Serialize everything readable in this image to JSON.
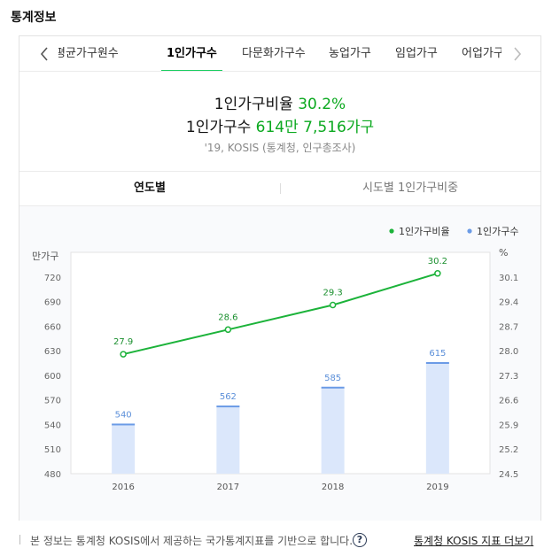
{
  "page_title": "통계정보",
  "tabs": [
    {
      "label": "평균가구원수",
      "active": false
    },
    {
      "label": "1인가구수",
      "active": true
    },
    {
      "label": "다문화가구수",
      "active": false
    },
    {
      "label": "농업가구",
      "active": false
    },
    {
      "label": "임업가구",
      "active": false
    },
    {
      "label": "어업가구",
      "active": false
    }
  ],
  "summary": {
    "line1_label": "1인가구비율",
    "line1_value": "30.2%",
    "line2_label": "1인가구수",
    "line2_value": "614만 7,516가구",
    "source": "'19, KOSIS (통계청, 인구총조사)"
  },
  "subtabs": {
    "active": "연도별",
    "inactive": "시도별 1인가구비중"
  },
  "colors": {
    "line": "#1cb33a",
    "bar_fill": "#dbe7fb",
    "bar_top": "#6b9be6",
    "bar_label": "#5b8fd9",
    "green_text": "#0ba91f"
  },
  "chart_data": {
    "type": "bar+line",
    "categories": [
      "2016",
      "2017",
      "2018",
      "2019"
    ],
    "series": [
      {
        "name": "1인가구수",
        "type": "bar",
        "axis": "left",
        "values": [
          540,
          562,
          585,
          615
        ],
        "labels": [
          "540",
          "562",
          "585",
          "615"
        ]
      },
      {
        "name": "1인가구비율",
        "type": "line",
        "axis": "right",
        "values": [
          27.9,
          28.6,
          29.3,
          30.2
        ],
        "labels": [
          "27.9",
          "28.6",
          "29.3",
          "30.2"
        ]
      }
    ],
    "ylabel_left": "만가구",
    "ylabel_right": "%",
    "ylim_left": [
      480,
      750
    ],
    "yticks_left": [
      "480",
      "510",
      "540",
      "570",
      "600",
      "630",
      "660",
      "690",
      "720"
    ],
    "ylim_right": [
      24.5,
      30.8
    ],
    "yticks_right": [
      "24.5",
      "25.2",
      "25.9",
      "26.6",
      "27.3",
      "28.0",
      "28.7",
      "29.4",
      "30.1"
    ],
    "legend_placement": "top-right",
    "grid": false
  },
  "footer": {
    "note": "본 정보는 통계청 KOSIS에서 제공하는 국가통계지표를 기반으로 합니다.",
    "help_symbol": "?",
    "link": "통계청 KOSIS 지표 더보기"
  }
}
